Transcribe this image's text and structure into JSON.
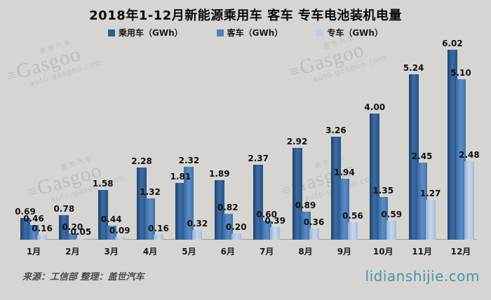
{
  "title": "2018年1-12月新能源乘用车 客车 专车电池装机电量",
  "legend": [
    {
      "label": "乘用车（GWh）",
      "color": "#2e5c94"
    },
    {
      "label": "客车（GWh）",
      "color": "#4f81bd"
    },
    {
      "label": "专车（GWh）",
      "color": "#b9cde5"
    }
  ],
  "chart_data": {
    "type": "bar",
    "title": "2018年1-12月新能源乘用车 客车 专车电池装机电量",
    "categories": [
      "1月",
      "2月",
      "3月",
      "4月",
      "5月",
      "6月",
      "7月",
      "8月",
      "9月",
      "10月",
      "11月",
      "12月"
    ],
    "series": [
      {
        "name": "乘用车（GWh）",
        "color": "#2e5c94",
        "values": [
          0.69,
          0.78,
          1.58,
          2.28,
          1.81,
          1.89,
          2.37,
          2.92,
          3.26,
          4.0,
          5.24,
          6.02
        ],
        "labels": [
          "0.69",
          "0.78",
          "1.58",
          "2.28",
          "1.81",
          "1.89",
          "2.37",
          "2.92",
          "3.26",
          "4.00",
          "5.24",
          "6.02"
        ]
      },
      {
        "name": "客车（GWh）",
        "color": "#4f81bd",
        "values": [
          0.46,
          0.2,
          0.44,
          1.32,
          2.32,
          0.82,
          0.6,
          0.89,
          1.94,
          1.35,
          2.45,
          5.1
        ],
        "labels": [
          "0.46",
          "0.20",
          "0.44",
          "1.32",
          "2.32",
          "0.82",
          "0.60",
          "0.89",
          "1.94",
          "1.35",
          "2.45",
          "5.10"
        ]
      },
      {
        "name": "专车（GWh）",
        "color": "#b9cde5",
        "values": [
          0.16,
          0.05,
          0.09,
          0.16,
          0.32,
          0.2,
          0.39,
          0.36,
          0.56,
          0.59,
          1.27,
          2.48
        ],
        "labels": [
          "0.16",
          "0.05",
          "0.09",
          "0.16",
          "0.32",
          "0.20",
          "0.39",
          "0.36",
          "0.56",
          "0.59",
          "1.27",
          "2.48"
        ]
      }
    ],
    "xlabel": "",
    "ylabel": "",
    "ylim": [
      0,
      6.3
    ],
    "grid": false,
    "legend_position": "top",
    "data_labels": true
  },
  "watermark": {
    "cn": "盖世汽车",
    "logo": "≡",
    "brand": "Gasgoo",
    "url": "auto.gasgoo.com"
  },
  "footer": {
    "source": "来源：工信部 整理：盖世汽车",
    "site": "lidianshijie.com"
  }
}
